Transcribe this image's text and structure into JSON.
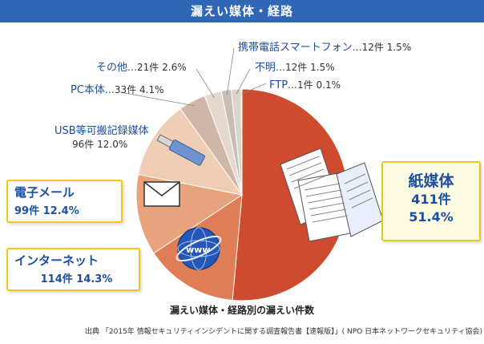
{
  "header": {
    "title": "漏えい媒体・経路"
  },
  "chart_data": {
    "type": "pie",
    "title": "漏えい媒体・経路別の漏えい件数",
    "unit": "件",
    "slices": [
      {
        "label": "紙媒体",
        "count": 411,
        "percent": 51.4,
        "count_text": "411件",
        "percent_text": "51.4%",
        "color": "#cf4b2f"
      },
      {
        "label": "インターネット",
        "count": 114,
        "percent": 14.3,
        "count_text": "114件",
        "percent_text": "14.3%",
        "color": "#df7d57"
      },
      {
        "label": "電子メール",
        "count": 99,
        "percent": 12.4,
        "count_text": "99件",
        "percent_text": "12.4%",
        "color": "#e8a37e"
      },
      {
        "label": "USB等可搬記録媒体",
        "count": 96,
        "percent": 12.0,
        "count_text": "96件",
        "percent_text": "12.0%",
        "color": "#f0cdb5"
      },
      {
        "label": "PC本体",
        "count": 33,
        "percent": 4.1,
        "count_text": "33件",
        "percent_text": "4.1%",
        "color": "#cfb6a6"
      },
      {
        "label": "その他",
        "count": 21,
        "percent": 2.6,
        "count_text": "21件",
        "percent_text": "2.6%",
        "color": "#e4d8cf"
      },
      {
        "label": "携帯電話スマートフォン",
        "count": 12,
        "percent": 1.5,
        "count_text": "12件",
        "percent_text": "1.5%",
        "color": "#c7bdb5"
      },
      {
        "label": "不明",
        "count": 12,
        "percent": 1.5,
        "count_text": "12件",
        "percent_text": "1.5%",
        "color": "#dcd4cd"
      },
      {
        "label": "FTP",
        "count": 1,
        "percent": 0.1,
        "count_text": "1件",
        "percent_text": "0.1%",
        "color": "#b9aea6"
      }
    ]
  },
  "source": "出典 「2015年 情報セキュリティインシデントに関する調査報告書【速報版】」( NPO 日本ネットワークセキュリティ協会)"
}
